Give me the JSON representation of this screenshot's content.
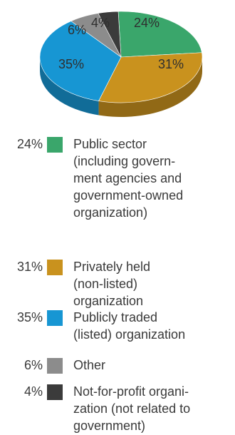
{
  "chart_data": {
    "type": "pie",
    "slices": [
      {
        "name": "Public sector (including government agencies and government-owned organization)",
        "value": 24,
        "label": "24%",
        "color": "#3aa66b"
      },
      {
        "name": "Privately held (non-listed) organization",
        "value": 31,
        "label": "31%",
        "color": "#c9921e"
      },
      {
        "name": "Publicly traded (listed) organization",
        "value": 35,
        "label": "35%",
        "color": "#1796d3"
      },
      {
        "name": "Other",
        "value": 6,
        "label": "6%",
        "color": "#8c8c8c"
      },
      {
        "name": "Not-for-profit organization (not related to government)",
        "value": 4,
        "label": "4%",
        "color": "#3b3b3b"
      }
    ]
  },
  "legend": [
    {
      "pct": "24%",
      "lines": [
        "Public sector",
        "(including govern-",
        "ment agencies and",
        "government-owned",
        "organization)"
      ]
    },
    {
      "pct": "31%",
      "lines": [
        "Privately held",
        "(non-listed)",
        "organization"
      ]
    },
    {
      "pct": "35%",
      "lines": [
        "Publicly traded",
        "(listed) organization"
      ]
    },
    {
      "pct": "6%",
      "lines": [
        "Other"
      ]
    },
    {
      "pct": "4%",
      "lines": [
        "Not-for-profit organi-",
        "zation (not related to",
        "government)"
      ]
    }
  ]
}
